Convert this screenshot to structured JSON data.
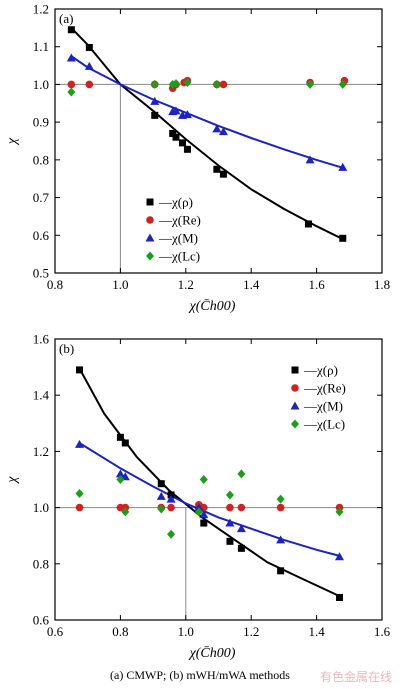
{
  "caption": "(a) CMWP; (b) mWH/mWA methods",
  "watermark": "有色金属在线",
  "colors": {
    "rho": "#000000",
    "Re": "#d42020",
    "M": "#1a22c8",
    "Lc": "#19a019",
    "ref": "#888888"
  },
  "chart_data": [
    {
      "type": "scatter",
      "panel_label": "(a)",
      "xlabel": "χ(C̄h00)",
      "ylabel": "χ",
      "xlim": [
        0.8,
        1.8
      ],
      "ylim": [
        0.5,
        1.2
      ],
      "xticks": [
        "0.8",
        "1.0",
        "1.2",
        "1.4",
        "1.6",
        "1.8"
      ],
      "yticks": [
        "0.5",
        "0.6",
        "0.7",
        "0.8",
        "0.9",
        "1.0",
        "1.1",
        "1.2"
      ],
      "reference_lines": {
        "x": 1.0,
        "y": 1.0
      },
      "legend_position": "lower-left",
      "series": [
        {
          "name": "—χ(ρ)",
          "marker": "square",
          "color": "#000000",
          "points": [
            [
              0.85,
              1.145
            ],
            [
              0.905,
              1.098
            ],
            [
              1.105,
              0.918
            ],
            [
              1.16,
              0.87
            ],
            [
              1.17,
              0.86
            ],
            [
              1.19,
              0.845
            ],
            [
              1.205,
              0.828
            ],
            [
              1.295,
              0.775
            ],
            [
              1.315,
              0.762
            ],
            [
              1.575,
              0.63
            ],
            [
              1.68,
              0.592
            ]
          ],
          "fit": [
            [
              0.85,
              1.15
            ],
            [
              0.9,
              1.105
            ],
            [
              1.0,
              1.0
            ],
            [
              1.1,
              0.93
            ],
            [
              1.2,
              0.855
            ],
            [
              1.3,
              0.785
            ],
            [
              1.4,
              0.722
            ],
            [
              1.5,
              0.67
            ],
            [
              1.6,
              0.624
            ],
            [
              1.68,
              0.59
            ]
          ]
        },
        {
          "name": "—χ(Re)",
          "marker": "circle",
          "color": "#d42020",
          "points": [
            [
              0.85,
              1.0
            ],
            [
              0.905,
              1.0
            ],
            [
              1.105,
              1.0
            ],
            [
              1.16,
              0.99
            ],
            [
              1.17,
              1.0
            ],
            [
              1.195,
              1.005
            ],
            [
              1.205,
              1.01
            ],
            [
              1.295,
              1.0
            ],
            [
              1.315,
              1.0
            ],
            [
              1.58,
              1.005
            ],
            [
              1.685,
              1.01
            ]
          ]
        },
        {
          "name": "—χ(M)",
          "marker": "triangle",
          "color": "#1a22c8",
          "points": [
            [
              0.85,
              1.07
            ],
            [
              0.905,
              1.048
            ],
            [
              1.105,
              0.955
            ],
            [
              1.16,
              0.928
            ],
            [
              1.17,
              0.93
            ],
            [
              1.19,
              0.918
            ],
            [
              1.205,
              0.92
            ],
            [
              1.295,
              0.882
            ],
            [
              1.315,
              0.875
            ],
            [
              1.58,
              0.8
            ],
            [
              1.68,
              0.78
            ]
          ],
          "fit": [
            [
              0.85,
              1.075
            ],
            [
              0.9,
              1.045
            ],
            [
              1.0,
              1.0
            ],
            [
              1.1,
              0.96
            ],
            [
              1.2,
              0.925
            ],
            [
              1.3,
              0.89
            ],
            [
              1.4,
              0.858
            ],
            [
              1.5,
              0.828
            ],
            [
              1.6,
              0.8
            ],
            [
              1.68,
              0.779
            ]
          ]
        },
        {
          "name": "—χ(Lc)",
          "marker": "diamond",
          "color": "#19a019",
          "points": [
            [
              0.85,
              0.98
            ],
            [
              1.105,
              1.0
            ],
            [
              1.16,
              1.0
            ],
            [
              1.17,
              1.002
            ],
            [
              1.205,
              1.005
            ],
            [
              1.295,
              1.0
            ],
            [
              1.58,
              1.0
            ],
            [
              1.68,
              1.0
            ]
          ]
        }
      ]
    },
    {
      "type": "scatter",
      "panel_label": "(b)",
      "xlabel": "χ(C̄h00)",
      "ylabel": "χ",
      "xlim": [
        0.6,
        1.6
      ],
      "ylim": [
        0.6,
        1.6
      ],
      "xticks": [
        "0.6",
        "0.8",
        "1.0",
        "1.2",
        "1.4",
        "1.6"
      ],
      "yticks": [
        "0.6",
        "0.8",
        "1.0",
        "1.2",
        "1.4",
        "1.6"
      ],
      "reference_lines": {
        "x": 1.0,
        "y": 1.0
      },
      "legend_position": "top-right",
      "series": [
        {
          "name": "—χ(ρ)",
          "marker": "square",
          "color": "#000000",
          "points": [
            [
              0.675,
              1.49
            ],
            [
              0.8,
              1.25
            ],
            [
              0.815,
              1.23
            ],
            [
              0.925,
              1.085
            ],
            [
              0.955,
              1.045
            ],
            [
              1.04,
              1.0
            ],
            [
              1.055,
              0.945
            ],
            [
              1.135,
              0.88
            ],
            [
              1.17,
              0.855
            ],
            [
              1.29,
              0.775
            ],
            [
              1.47,
              0.68
            ]
          ],
          "fit": [
            [
              0.675,
              1.495
            ],
            [
              0.75,
              1.335
            ],
            [
              0.85,
              1.18
            ],
            [
              0.95,
              1.06
            ],
            [
              1.05,
              0.965
            ],
            [
              1.15,
              0.885
            ],
            [
              1.25,
              0.805
            ],
            [
              1.35,
              0.75
            ],
            [
              1.47,
              0.685
            ]
          ]
        },
        {
          "name": "—χ(Re)",
          "marker": "circle",
          "color": "#d42020",
          "points": [
            [
              0.675,
              1.0
            ],
            [
              0.8,
              1.0
            ],
            [
              0.815,
              1.0
            ],
            [
              0.925,
              1.0
            ],
            [
              0.955,
              1.0
            ],
            [
              1.04,
              1.01
            ],
            [
              1.055,
              1.0
            ],
            [
              1.135,
              1.0
            ],
            [
              1.17,
              1.0
            ],
            [
              1.29,
              1.0
            ],
            [
              1.47,
              1.0
            ]
          ]
        },
        {
          "name": "—χ(M)",
          "marker": "triangle",
          "color": "#1a22c8",
          "points": [
            [
              0.675,
              1.225
            ],
            [
              0.8,
              1.12
            ],
            [
              0.815,
              1.11
            ],
            [
              0.925,
              1.04
            ],
            [
              0.955,
              1.03
            ],
            [
              1.04,
              1.0
            ],
            [
              1.055,
              0.975
            ],
            [
              1.135,
              0.945
            ],
            [
              1.17,
              0.925
            ],
            [
              1.29,
              0.885
            ],
            [
              1.47,
              0.825
            ]
          ],
          "fit": [
            [
              0.675,
              1.23
            ],
            [
              0.8,
              1.14
            ],
            [
              0.9,
              1.075
            ],
            [
              1.0,
              1.015
            ],
            [
              1.1,
              0.965
            ],
            [
              1.2,
              0.925
            ],
            [
              1.3,
              0.885
            ],
            [
              1.4,
              0.85
            ],
            [
              1.47,
              0.828
            ]
          ]
        },
        {
          "name": "—χ(Lc)",
          "marker": "diamond",
          "color": "#19a019",
          "points": [
            [
              0.675,
              1.05
            ],
            [
              0.8,
              1.1
            ],
            [
              0.815,
              0.985
            ],
            [
              0.925,
              0.995
            ],
            [
              0.955,
              0.905
            ],
            [
              1.04,
              0.985
            ],
            [
              1.055,
              1.1
            ],
            [
              1.135,
              1.045
            ],
            [
              1.17,
              1.12
            ],
            [
              1.29,
              1.03
            ],
            [
              1.47,
              0.985
            ]
          ]
        }
      ]
    }
  ]
}
